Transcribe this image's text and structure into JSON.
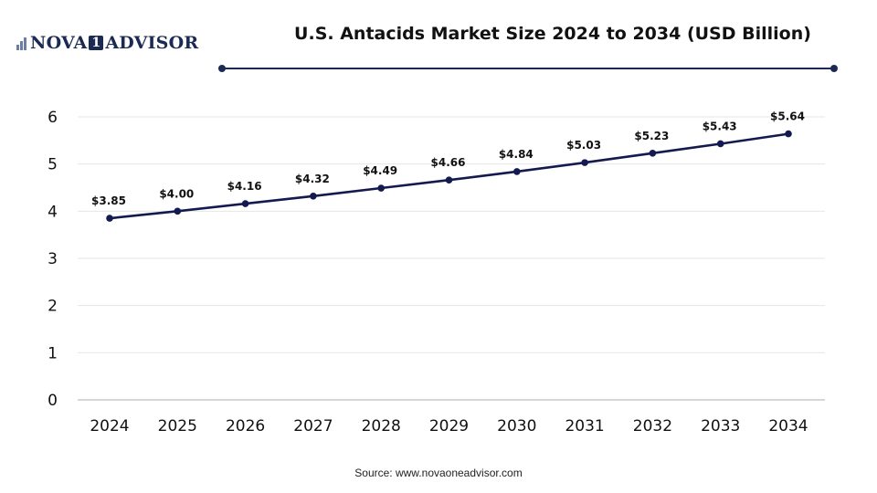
{
  "brand": {
    "name_left": "NOVA",
    "name_mid": "1",
    "name_right": "ADVISOR"
  },
  "header": {
    "title": "U.S. Antacids Market Size 2024 to 2034 (USD Billion)"
  },
  "footer": {
    "source": "Source: www.novaoneadvisor.com"
  },
  "colors": {
    "line": "#141a4f",
    "marker": "#141a4f",
    "divider": "#1b2a52",
    "grid": "#e6e6e6",
    "axis": "#bfbfbf"
  },
  "chart_data": {
    "type": "line",
    "categories": [
      "2024",
      "2025",
      "2026",
      "2027",
      "2028",
      "2029",
      "2030",
      "2031",
      "2032",
      "2033",
      "2034"
    ],
    "series": [
      {
        "values": [
          3.85,
          4.0,
          4.16,
          4.32,
          4.49,
          4.66,
          4.84,
          5.03,
          5.23,
          5.43,
          5.64
        ],
        "labels": [
          "$3.85",
          "$4.00",
          "$4.16",
          "$4.32",
          "$4.49",
          "$4.66",
          "$4.84",
          "$5.03",
          "$5.23",
          "$5.43",
          "$5.64"
        ]
      }
    ],
    "ylim": [
      0,
      6
    ],
    "yticks": [
      "0",
      "1",
      "2",
      "3",
      "4",
      "5",
      "6"
    ],
    "grid": true,
    "legend": "none",
    "xlabel": "",
    "ylabel": ""
  }
}
